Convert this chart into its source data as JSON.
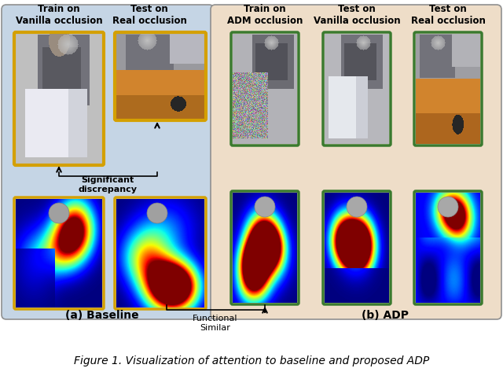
{
  "fig_width": 6.4,
  "fig_height": 4.87,
  "dpi": 100,
  "bg_color": "#ffffff",
  "panel_a_bg": "#c5d5e5",
  "panel_b_bg": "#eeddc8",
  "panel_a_label": "(a) Baseline",
  "panel_b_label": "(b) ADP",
  "caption": "Figure 1. Visualization of attention to baseline and proposed ADP",
  "caption_fontsize": 10,
  "label_fontsize": 10,
  "header_fontsize": 8.5,
  "annot_fontsize": 8,
  "panel_a_headers": [
    "Train on\nVanilla occlusion",
    "Test on\nReal occlusion"
  ],
  "panel_b_headers": [
    "Train on\nADM occlusion",
    "Test on\nVanilla occlusion",
    "Test on\nReal occlusion"
  ],
  "orange_border": "#D4A000",
  "green_border": "#3a7a2f",
  "arrow_color": "#000000",
  "sig_disc_text": "Significant\ndiscrepancy",
  "func_sim_text": "Functional\nSimilar"
}
